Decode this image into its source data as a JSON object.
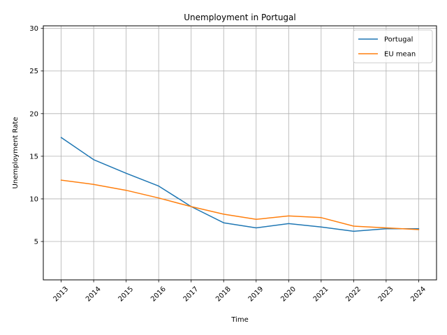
{
  "chart_data": {
    "type": "line",
    "title": "Unemployment in Portugal",
    "xlabel": "Time",
    "ylabel": "Unemployment Rate",
    "x": [
      "2013",
      "2014",
      "2015",
      "2016",
      "2017",
      "2018",
      "2019",
      "2020",
      "2021",
      "2022",
      "2023",
      "2024"
    ],
    "series": [
      {
        "name": "Portugal",
        "color": "#1f77b4",
        "values": [
          17.2,
          14.6,
          13.0,
          11.5,
          9.1,
          7.2,
          6.6,
          7.1,
          6.7,
          6.2,
          6.5,
          6.5
        ]
      },
      {
        "name": "EU mean",
        "color": "#ff7f0e",
        "values": [
          12.2,
          11.7,
          11.0,
          10.1,
          9.1,
          8.2,
          7.6,
          8.0,
          7.8,
          6.8,
          6.6,
          6.4
        ]
      }
    ],
    "ylim": [
      0.5,
      30.3
    ],
    "yticks": [
      5,
      10,
      15,
      20,
      25,
      30
    ],
    "grid": true,
    "legend_position": "top-right"
  }
}
